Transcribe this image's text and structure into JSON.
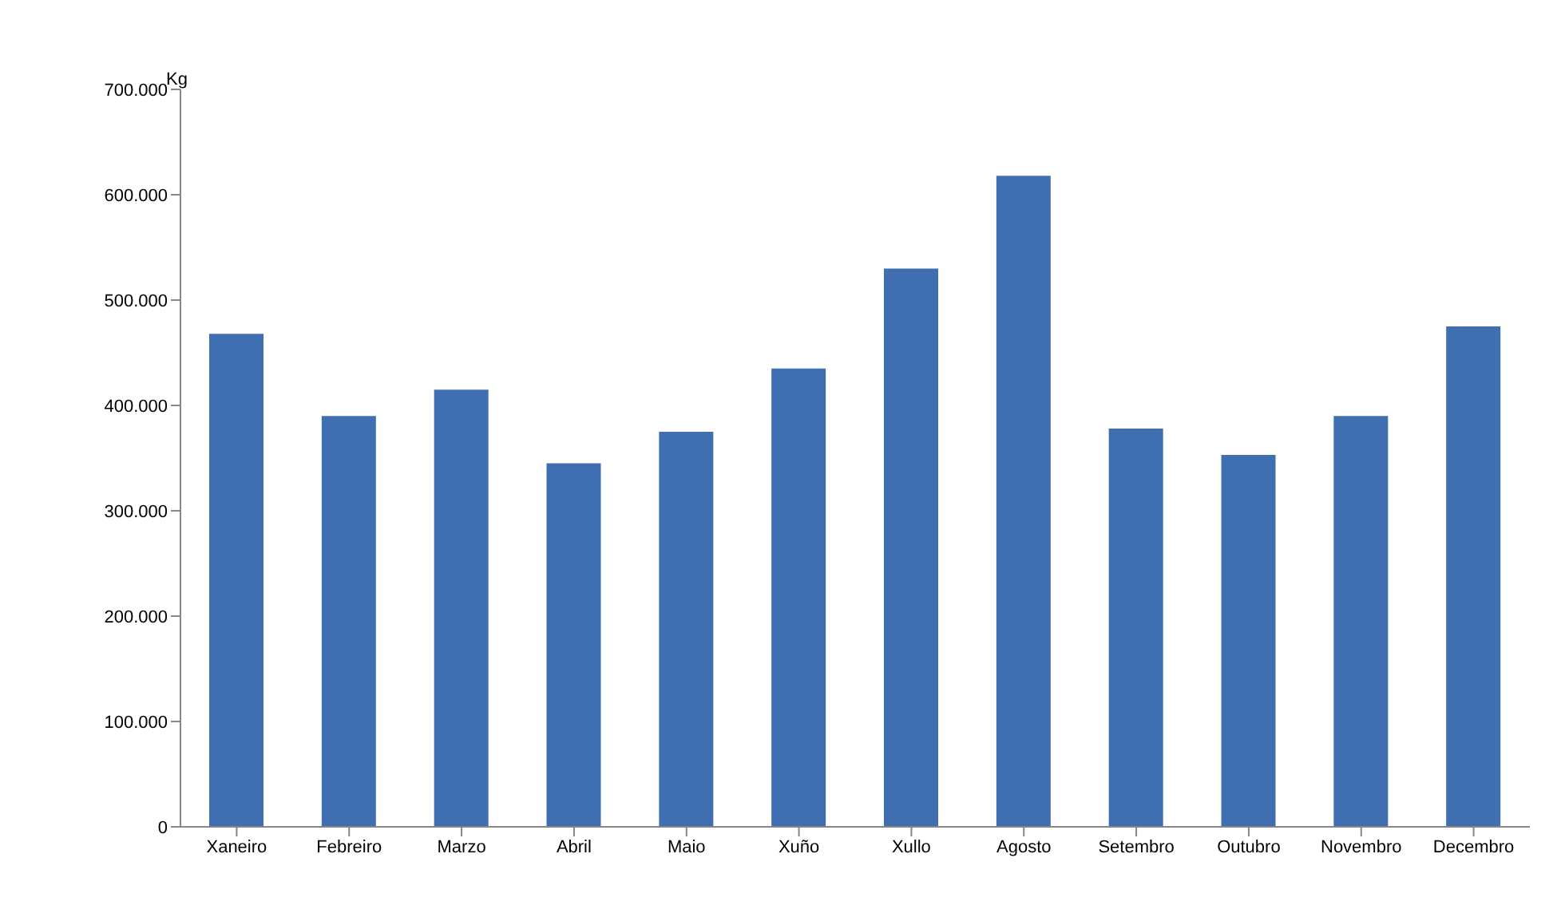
{
  "chart_data": {
    "type": "bar",
    "ylabel": "Kg",
    "categories": [
      "Xaneiro",
      "Febreiro",
      "Marzo",
      "Abril",
      "Maio",
      "Xuño",
      "Xullo",
      "Agosto",
      "Setembro",
      "Outubro",
      "Novembro",
      "Decembro"
    ],
    "values": [
      468000,
      390000,
      415000,
      345000,
      375000,
      435000,
      530000,
      618000,
      378000,
      353000,
      390000,
      475000
    ],
    "color": "#3f6fb0",
    "ylim": [
      0,
      700000
    ],
    "yticks": [
      0,
      {
        "value": 100000,
        "label": "100.000"
      },
      {
        "value": 200000,
        "label": "200.000"
      },
      {
        "value": 300000,
        "label": "300.000"
      },
      {
        "value": 400000,
        "label": "400.000"
      },
      {
        "value": 500000,
        "label": "500.000"
      },
      {
        "value": 600000,
        "label": "600.000"
      },
      {
        "value": 700000,
        "label": "700.000"
      }
    ],
    "grid": false,
    "legend": false
  }
}
